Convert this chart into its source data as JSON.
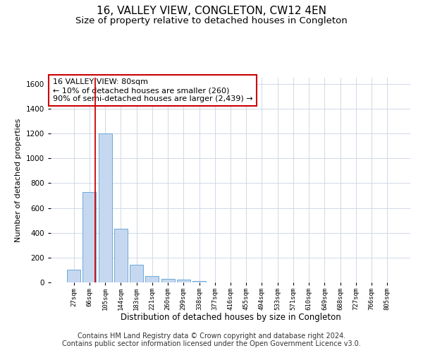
{
  "title": "16, VALLEY VIEW, CONGLETON, CW12 4EN",
  "subtitle": "Size of property relative to detached houses in Congleton",
  "xlabel": "Distribution of detached houses by size in Congleton",
  "ylabel": "Number of detached properties",
  "categories": [
    "27sqm",
    "66sqm",
    "105sqm",
    "144sqm",
    "183sqm",
    "221sqm",
    "260sqm",
    "299sqm",
    "338sqm",
    "377sqm",
    "416sqm",
    "455sqm",
    "494sqm",
    "533sqm",
    "571sqm",
    "610sqm",
    "649sqm",
    "688sqm",
    "727sqm",
    "766sqm",
    "805sqm"
  ],
  "values": [
    100,
    730,
    1200,
    430,
    140,
    50,
    30,
    25,
    10,
    0,
    0,
    0,
    0,
    0,
    0,
    0,
    0,
    0,
    0,
    0,
    0
  ],
  "bar_color": "#c5d8f0",
  "bar_edgecolor": "#5a9fd4",
  "vline_x": 1.36,
  "vline_color": "#cc0000",
  "annotation_text": "16 VALLEY VIEW: 80sqm\n← 10% of detached houses are smaller (260)\n90% of semi-detached houses are larger (2,439) →",
  "annotation_box_color": "#ffffff",
  "annotation_box_edgecolor": "#cc0000",
  "ylim": [
    0,
    1650
  ],
  "yticks": [
    0,
    200,
    400,
    600,
    800,
    1000,
    1200,
    1400,
    1600
  ],
  "background_color": "#ffffff",
  "grid_color": "#d0d8e8",
  "footer_text": "Contains HM Land Registry data © Crown copyright and database right 2024.\nContains public sector information licensed under the Open Government Licence v3.0.",
  "title_fontsize": 11,
  "subtitle_fontsize": 9.5,
  "annotation_fontsize": 8,
  "footer_fontsize": 7,
  "ylabel_fontsize": 8,
  "xlabel_fontsize": 8.5
}
